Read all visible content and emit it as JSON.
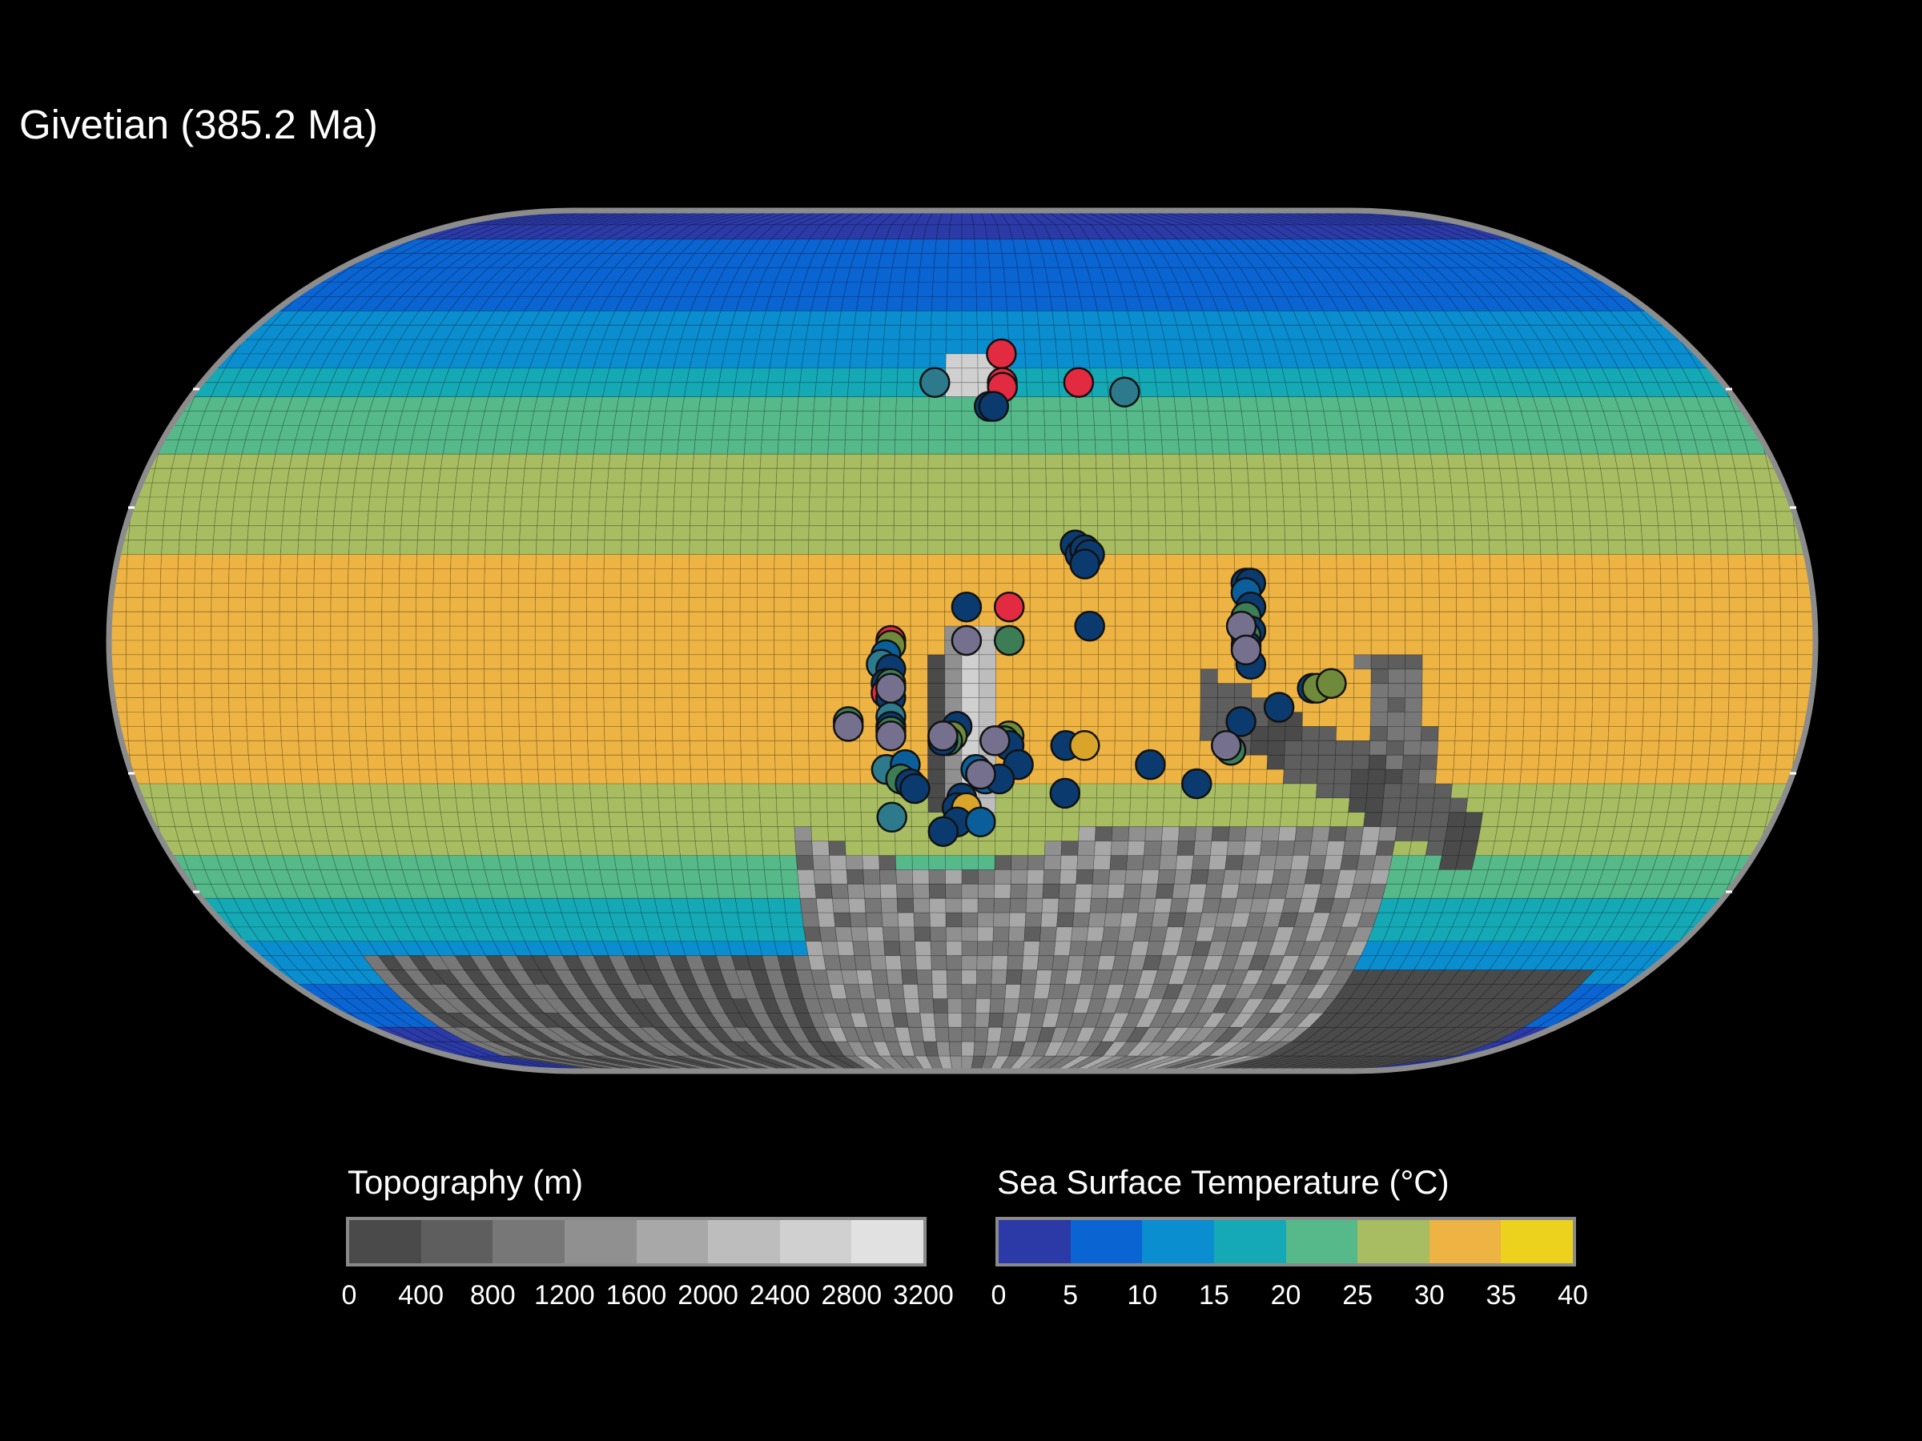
{
  "title": "Givetian (385.2 Ma)",
  "legends": {
    "topography": {
      "title": "Topography (m)",
      "ticks": [
        "0",
        "400",
        "800",
        "1200",
        "1600",
        "2000",
        "2400",
        "2800",
        "3200"
      ],
      "colors": [
        "#4a4a4a",
        "#5e5e5e",
        "#777777",
        "#909090",
        "#a8a8a8",
        "#bdbdbd",
        "#d0d0d0",
        "#e1e1e1"
      ]
    },
    "sst": {
      "title": "Sea Surface Temperature (°C)",
      "ticks": [
        "0",
        "5",
        "10",
        "15",
        "20",
        "25",
        "30",
        "35",
        "40"
      ],
      "colors": [
        "#2b3aa6",
        "#0a64d2",
        "#0a8ed0",
        "#15a9b6",
        "#55b98a",
        "#a8bd62",
        "#edb343",
        "#ecd21c"
      ]
    }
  },
  "colors": {
    "background": "#000000",
    "map_border": "#8c8c8c",
    "cell_grid": "#000000",
    "point_stroke": "#111111"
  },
  "map_data": {
    "projection": "Natural Earth (Eckert-like pill)",
    "sst_bands": [
      {
        "from_lat": 90,
        "to_lat": 84,
        "sst_class": 0
      },
      {
        "from_lat": 84,
        "to_lat": 70,
        "sst_class": 1
      },
      {
        "from_lat": 70,
        "to_lat": 58,
        "sst_class": 2
      },
      {
        "from_lat": 58,
        "to_lat": 50,
        "sst_class": 3
      },
      {
        "from_lat": 50,
        "to_lat": 40,
        "sst_class": 4
      },
      {
        "from_lat": 40,
        "to_lat": 18,
        "sst_class": 5
      },
      {
        "from_lat": 18,
        "to_lat": -30,
        "sst_class": 6
      },
      {
        "from_lat": -30,
        "to_lat": -45,
        "sst_class": 5
      },
      {
        "from_lat": -45,
        "to_lat": -55,
        "sst_class": 4
      },
      {
        "from_lat": -55,
        "to_lat": -62,
        "sst_class": 3
      },
      {
        "from_lat": -62,
        "to_lat": -72,
        "sst_class": 2
      },
      {
        "from_lat": -72,
        "to_lat": -82,
        "sst_class": 1
      },
      {
        "from_lat": -82,
        "to_lat": -90,
        "sst_class": 0
      }
    ],
    "occurrences": [
      {
        "lon": 9,
        "lat": 60,
        "sst": 37
      },
      {
        "lon": 9,
        "lat": 54,
        "sst": 37
      },
      {
        "lon": 9,
        "lat": 53,
        "sst": 37
      },
      {
        "lon": 26,
        "lat": 54,
        "sst": 37
      },
      {
        "lon": -6,
        "lat": 54,
        "sst": 15
      },
      {
        "lon": 36,
        "lat": 52,
        "sst": 15
      },
      {
        "lon": 6,
        "lat": 49,
        "sst": 6
      },
      {
        "lon": 7,
        "lat": 49,
        "sst": 6
      },
      {
        "lon": 24,
        "lat": 20,
        "sst": 6
      },
      {
        "lon": 25,
        "lat": 18,
        "sst": 6
      },
      {
        "lon": 26,
        "lat": 19,
        "sst": 6
      },
      {
        "lon": 27,
        "lat": 18,
        "sst": 6
      },
      {
        "lon": 26,
        "lat": 16,
        "sst": 6
      },
      {
        "lon": 1,
        "lat": 7,
        "sst": 6
      },
      {
        "lon": 10,
        "lat": 7,
        "sst": 37
      },
      {
        "lon": 10,
        "lat": 0,
        "sst": 23
      },
      {
        "lon": 27,
        "lat": 3,
        "sst": 6
      },
      {
        "lon": 60,
        "lat": 12,
        "sst": 6
      },
      {
        "lon": 61,
        "lat": 12,
        "sst": 6
      },
      {
        "lon": 60,
        "lat": 10,
        "sst": 10
      },
      {
        "lon": 61,
        "lat": 7,
        "sst": 6
      },
      {
        "lon": 60,
        "lat": 5,
        "sst": 23
      },
      {
        "lon": 61,
        "lat": 2,
        "sst": 6
      },
      {
        "lon": 60,
        "lat": 1,
        "sst": 23
      },
      {
        "lon": 60,
        "lat": -1,
        "sst": 6
      },
      {
        "lon": 61,
        "lat": -5,
        "sst": 6
      },
      {
        "lon": 74,
        "lat": -10,
        "sst": 6
      },
      {
        "lon": 75,
        "lat": -10,
        "sst": 28
      },
      {
        "lon": 59,
        "lat": -17,
        "sst": 6
      },
      {
        "lon": -15,
        "lat": 0,
        "sst": 37
      },
      {
        "lon": -15,
        "lat": -1,
        "sst": 25
      },
      {
        "lon": -16,
        "lat": -3,
        "sst": 10
      },
      {
        "lon": -17,
        "lat": -5,
        "sst": 17
      },
      {
        "lon": -15,
        "lat": -6,
        "sst": 6
      },
      {
        "lon": -16,
        "lat": -9,
        "sst": 6
      },
      {
        "lon": -15,
        "lat": -9,
        "sst": 23
      },
      {
        "lon": -16,
        "lat": -11,
        "sst": 37
      },
      {
        "lon": -15,
        "lat": -12,
        "sst": 6
      },
      {
        "lon": -24,
        "lat": -17,
        "sst": 23
      },
      {
        "lon": -15,
        "lat": -16,
        "sst": 17
      },
      {
        "lon": -15,
        "lat": -18,
        "sst": 6
      },
      {
        "lon": -15,
        "lat": -19,
        "sst": 23
      },
      {
        "lon": -1,
        "lat": -18,
        "sst": 6
      },
      {
        "lon": -2,
        "lat": -20,
        "sst": 25
      },
      {
        "lon": -3,
        "lat": -21,
        "sst": 23
      },
      {
        "lon": -4,
        "lat": -21,
        "sst": 6
      },
      {
        "lon": 10,
        "lat": -20,
        "sst": 25
      },
      {
        "lon": 9,
        "lat": -21,
        "sst": 23
      },
      {
        "lon": 10,
        "lat": -22,
        "sst": 6
      },
      {
        "lon": 22,
        "lat": -22,
        "sst": 6
      },
      {
        "lon": 26,
        "lat": -22,
        "sst": 30
      },
      {
        "lon": 40,
        "lat": -26,
        "sst": 6
      },
      {
        "lon": 12,
        "lat": -26,
        "sst": 6
      },
      {
        "lon": -16,
        "lat": -27,
        "sst": 15
      },
      {
        "lon": -12,
        "lat": -26,
        "sst": 10
      },
      {
        "lon": -13,
        "lat": -29,
        "sst": 23
      },
      {
        "lon": -11,
        "lat": -30,
        "sst": 6
      },
      {
        "lon": -10,
        "lat": -31,
        "sst": 6
      },
      {
        "lon": 3,
        "lat": -27,
        "sst": 10
      },
      {
        "lon": 4,
        "lat": -28,
        "sst": 23
      },
      {
        "lon": 5,
        "lat": -29,
        "sst": 10
      },
      {
        "lon": 8,
        "lat": -29,
        "sst": 6
      },
      {
        "lon": 22,
        "lat": -32,
        "sst": 6
      },
      {
        "lon": 50,
        "lat": -30,
        "sst": 6
      },
      {
        "lon": 0,
        "lat": -33,
        "sst": 6
      },
      {
        "lon": -1,
        "lat": -35,
        "sst": 6
      },
      {
        "lon": 1,
        "lat": -35,
        "sst": 30
      },
      {
        "lon": -15,
        "lat": -37,
        "sst": 15
      },
      {
        "lon": -1,
        "lat": -38,
        "sst": 6
      },
      {
        "lon": 4,
        "lat": -38,
        "sst": 10
      },
      {
        "lon": -4,
        "lat": -40,
        "sst": 6
      },
      {
        "lon": 78,
        "lat": -9,
        "sst": 25
      },
      {
        "lon": 57,
        "lat": -23,
        "sst": 23
      },
      {
        "lon": 67,
        "lat": -14,
        "sst": 6
      }
    ],
    "purple_points": [
      {
        "lon": 1,
        "lat": 0
      },
      {
        "lon": 59,
        "lat": 3
      },
      {
        "lon": 60,
        "lat": -2
      },
      {
        "lon": -15,
        "lat": -10
      },
      {
        "lon": -15,
        "lat": -20
      },
      {
        "lon": -24,
        "lat": -18
      },
      {
        "lon": -4,
        "lat": -20
      },
      {
        "lon": 7,
        "lat": -21
      },
      {
        "lon": 4,
        "lat": -28
      },
      {
        "lon": 56,
        "lat": -22
      }
    ]
  }
}
